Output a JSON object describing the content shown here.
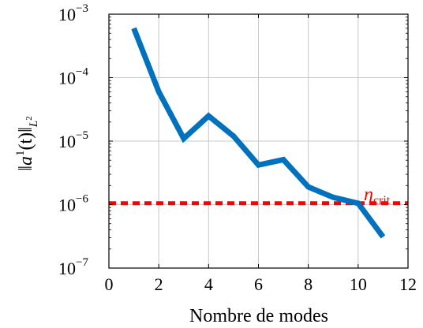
{
  "chart_data": {
    "type": "line",
    "xlabel": "Nombre de modes",
    "ylabel": {
      "norm_left": "‖",
      "a": "a",
      "superscript": "1",
      "arg": "(t)",
      "norm_right": "‖",
      "subscript": "L",
      "subsubscript": "2"
    },
    "xlim": [
      0,
      12
    ],
    "xticks": [
      0,
      2,
      4,
      6,
      8,
      10,
      12
    ],
    "xtick_labels": [
      "0",
      "2",
      "4",
      "6",
      "8",
      "10",
      "12"
    ],
    "ylim": [
      1e-07,
      0.001
    ],
    "yscale": "log",
    "yticks": [
      {
        "value": 0.001,
        "base": "10",
        "exp": "−3"
      },
      {
        "value": 0.0001,
        "base": "10",
        "exp": "−4"
      },
      {
        "value": 1e-05,
        "base": "10",
        "exp": "−5"
      },
      {
        "value": 1e-06,
        "base": "10",
        "exp": "−6"
      },
      {
        "value": 1e-07,
        "base": "10",
        "exp": "−7"
      }
    ],
    "grid": true,
    "series": [
      {
        "color": "#0072bd",
        "x": [
          1,
          2,
          3,
          4,
          5,
          6,
          7,
          8,
          9,
          10,
          11
        ],
        "y": [
          0.0006,
          6e-05,
          1.1e-05,
          2.5e-05,
          1.2e-05,
          4.2e-06,
          5.1e-06,
          1.9e-06,
          1.3e-06,
          1.05e-06,
          3.1e-07
        ]
      }
    ],
    "threshold": {
      "value": 1.05e-06,
      "color": "#ff0000",
      "style": "dashed",
      "label_symbol": "η",
      "label_subscript": "crit"
    }
  }
}
